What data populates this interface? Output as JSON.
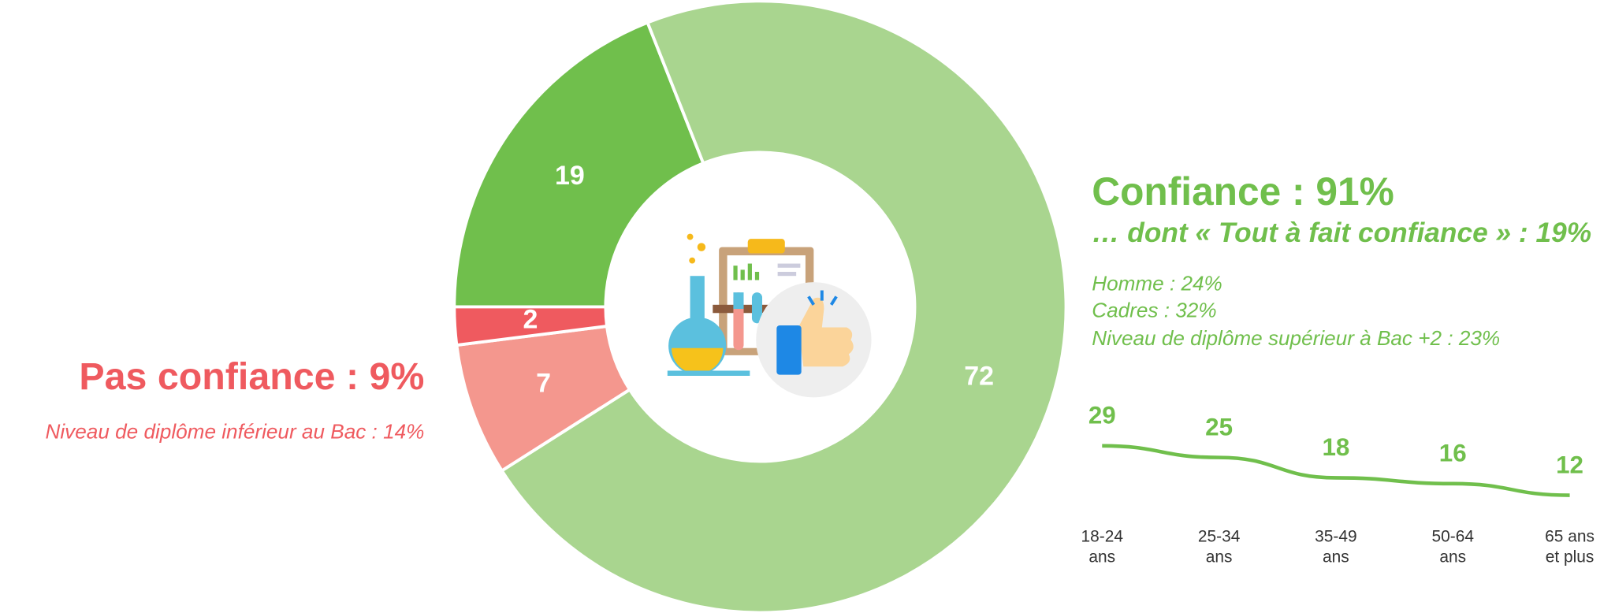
{
  "chart_data": [
    {
      "type": "pie",
      "values": [
        19,
        72,
        7,
        2
      ],
      "colors": [
        "#70bf4c",
        "#a9d58f",
        "#f4978e",
        "#ef5a5f"
      ],
      "start_angle": 270,
      "donut": true
    },
    {
      "type": "line",
      "categories": [
        "18-24 ans",
        "25-34 ans",
        "35-49 ans",
        "50-64 ans",
        "65 ans et plus"
      ],
      "values": [
        29,
        25,
        18,
        16,
        12
      ],
      "color": "#70bf4c"
    }
  ],
  "texts": {
    "confidence_title": "Confiance : 91%",
    "confidence_subtitle": "… dont « Tout à fait confiance » : 19%",
    "confidence_details": [
      "Homme : 24%",
      "Cadres : 32%",
      "Niveau de diplôme supérieur à Bac +2 : 23%"
    ],
    "no_confidence_title": "Pas confiance : 9%",
    "no_confidence_detail": "Niveau de diplôme inférieur au Bac : 14%"
  }
}
